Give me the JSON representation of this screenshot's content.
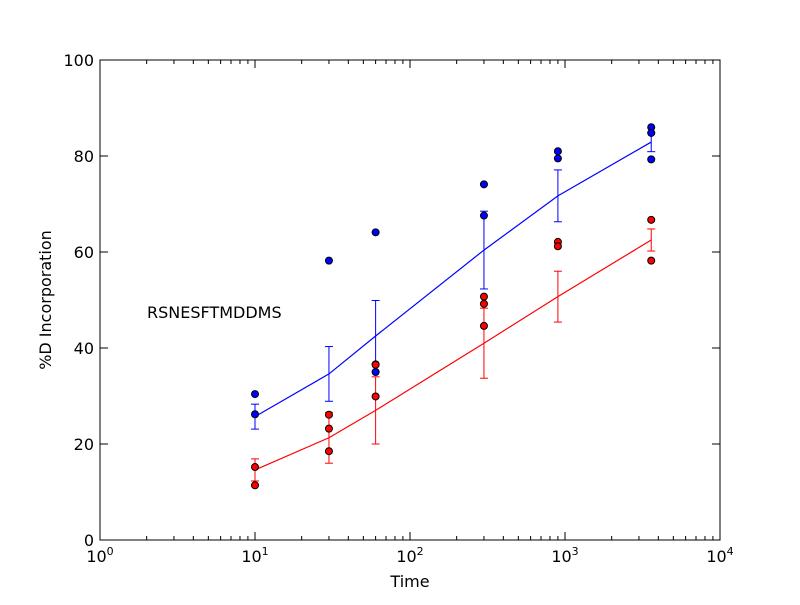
{
  "chart_data": {
    "type": "scatter",
    "title": "",
    "xlabel": "Time",
    "ylabel": "%D Incorporation",
    "xscale": "log",
    "xlim": [
      1,
      10000
    ],
    "ylim": [
      0,
      100
    ],
    "x_ticks": [
      {
        "value": 1,
        "base": "10",
        "exp": "0"
      },
      {
        "value": 10,
        "base": "10",
        "exp": "1"
      },
      {
        "value": 100,
        "base": "10",
        "exp": "2"
      },
      {
        "value": 1000,
        "base": "10",
        "exp": "3"
      },
      {
        "value": 10000,
        "base": "10",
        "exp": "4"
      }
    ],
    "y_ticks": [
      0,
      20,
      40,
      60,
      80,
      100
    ],
    "annotation": "RSNESFTMDDMS",
    "series": [
      {
        "color": "#0000ff",
        "points": [
          {
            "x": 10,
            "y": 26.2
          },
          {
            "x": 10,
            "y": 30.4
          },
          {
            "x": 30,
            "y": 58.2
          },
          {
            "x": 60,
            "y": 64.1
          },
          {
            "x": 60,
            "y": 36.6
          },
          {
            "x": 60,
            "y": 35.0
          },
          {
            "x": 300,
            "y": 74.1
          },
          {
            "x": 300,
            "y": 67.6
          },
          {
            "x": 900,
            "y": 81.0
          },
          {
            "x": 900,
            "y": 79.5
          },
          {
            "x": 3600,
            "y": 86.0
          },
          {
            "x": 3600,
            "y": 84.8
          },
          {
            "x": 3600,
            "y": 79.3
          }
        ],
        "mean": [
          {
            "x": 10,
            "y": 25.7
          },
          {
            "x": 30,
            "y": 34.6
          },
          {
            "x": 60,
            "y": 42.5
          },
          {
            "x": 300,
            "y": 60.4
          },
          {
            "x": 900,
            "y": 71.7
          },
          {
            "x": 3600,
            "y": 82.9
          }
        ],
        "error": [
          2.6,
          5.7,
          7.4,
          8.1,
          5.4,
          2.0
        ]
      },
      {
        "color": "#ff0000",
        "points": [
          {
            "x": 10,
            "y": 15.2
          },
          {
            "x": 10,
            "y": 11.4
          },
          {
            "x": 30,
            "y": 26.1
          },
          {
            "x": 30,
            "y": 23.2
          },
          {
            "x": 30,
            "y": 18.5
          },
          {
            "x": 60,
            "y": 36.5
          },
          {
            "x": 60,
            "y": 29.9
          },
          {
            "x": 300,
            "y": 50.7
          },
          {
            "x": 300,
            "y": 49.2
          },
          {
            "x": 300,
            "y": 44.6
          },
          {
            "x": 900,
            "y": 62.1
          },
          {
            "x": 900,
            "y": 61.2
          },
          {
            "x": 3600,
            "y": 66.7
          },
          {
            "x": 3600,
            "y": 58.2
          }
        ],
        "mean": [
          {
            "x": 10,
            "y": 14.6
          },
          {
            "x": 30,
            "y": 21.3
          },
          {
            "x": 60,
            "y": 27.0
          },
          {
            "x": 300,
            "y": 41.0
          },
          {
            "x": 900,
            "y": 50.7
          },
          {
            "x": 3600,
            "y": 62.5
          }
        ],
        "error": [
          2.3,
          5.3,
          7.0,
          7.3,
          5.3,
          2.3
        ]
      }
    ]
  }
}
